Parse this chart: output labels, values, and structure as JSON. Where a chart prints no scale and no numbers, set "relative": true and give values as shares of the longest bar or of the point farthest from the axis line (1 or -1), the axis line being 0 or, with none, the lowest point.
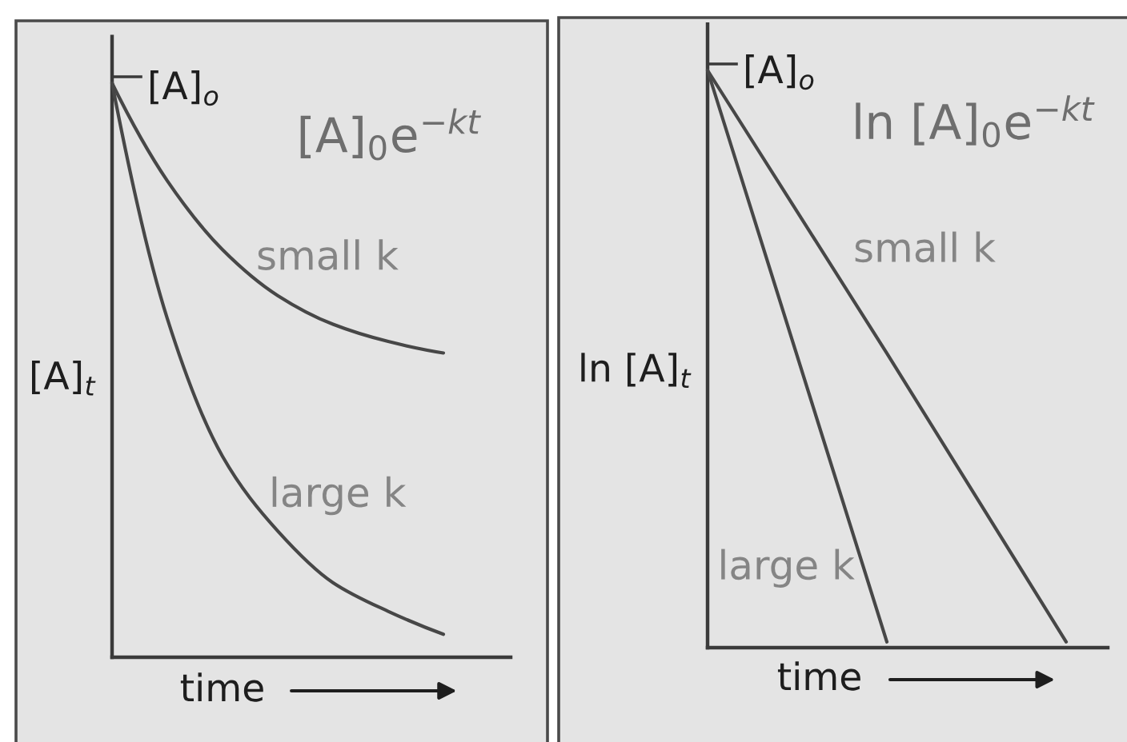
{
  "chart_data": [
    {
      "type": "line",
      "title": "[A]$_{0}$e$^{−kt}$",
      "xlabel": "time",
      "ylabel": "[A]$_{t}$",
      "relative": true,
      "categories": [
        null,
        null,
        null,
        null,
        null,
        null,
        null
      ],
      "series": [
        {
          "name": "small k",
          "color": "#474747",
          "values": [
            1.0,
            0.83,
            0.71,
            0.63,
            0.58,
            0.55,
            0.53
          ]
        },
        {
          "name": "large k",
          "color": "#474747",
          "values": [
            1.0,
            0.59,
            0.35,
            0.22,
            0.13,
            0.08,
            0.04
          ]
        }
      ],
      "annotations": [
        "[A]$_{o}$"
      ]
    },
    {
      "type": "line",
      "title": "ln [A]$_{0}$e$^{−kt}$",
      "xlabel": "time",
      "ylabel": "ln [A]$_{t}$",
      "relative": true,
      "categories": [
        null,
        null,
        null
      ],
      "series": [
        {
          "name": "small k",
          "color": "#474747",
          "values": [
            1.0,
            0.51,
            0.01
          ]
        },
        {
          "name": "large k",
          "color": "#474747",
          "values": [
            1.0,
            0.01,
            null
          ]
        }
      ],
      "annotations": [
        "[A]$_{o}$"
      ]
    }
  ]
}
